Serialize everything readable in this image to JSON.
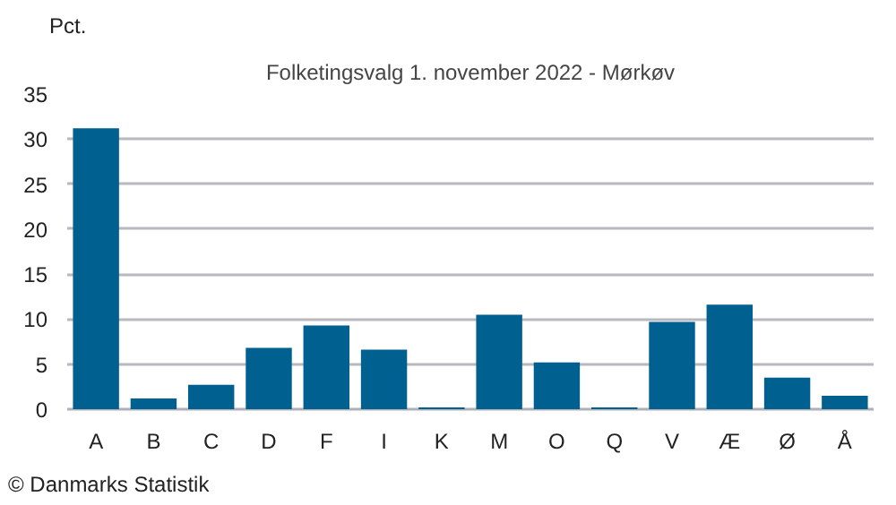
{
  "chart_data": {
    "type": "bar",
    "title": "Folketingsvalg 1. november 2022 - Mørkøv",
    "ylabel": "Pct.",
    "categories": [
      "A",
      "B",
      "C",
      "D",
      "F",
      "I",
      "K",
      "M",
      "O",
      "Q",
      "V",
      "Æ",
      "Ø",
      "Å"
    ],
    "values": [
      31.2,
      1.2,
      2.7,
      6.8,
      9.3,
      6.6,
      0.2,
      10.5,
      5.2,
      0.2,
      9.7,
      11.6,
      3.5,
      1.5
    ],
    "color": "#006090",
    "ylim": [
      0,
      35
    ],
    "yticks": [
      0,
      5,
      10,
      15,
      20,
      25,
      30,
      35
    ],
    "grid": "y",
    "annotations": [
      "© Danmarks Statistik"
    ]
  }
}
